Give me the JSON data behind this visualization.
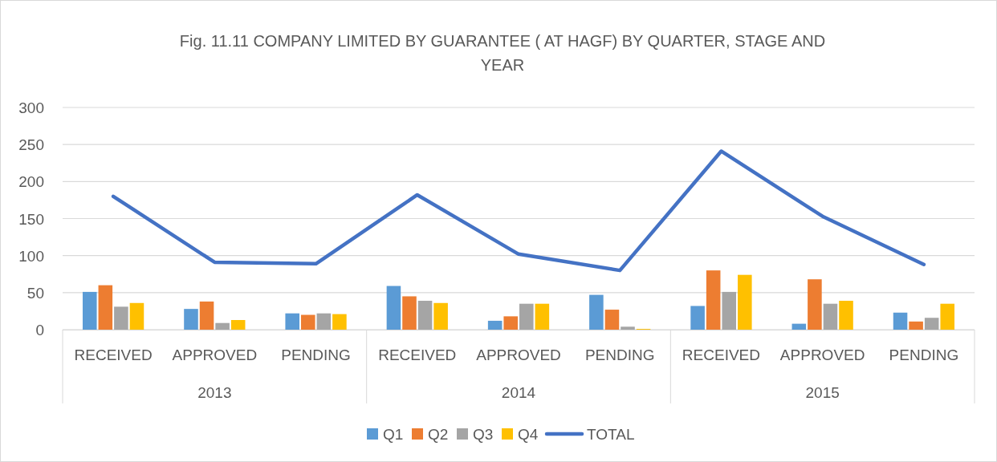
{
  "chart_data": {
    "type": "bar",
    "title": "Fig. 11.11  COMPANY LIMITED BY GUARANTEE ( AT HAGF) BY QUARTER, STAGE AND YEAR",
    "categories": [
      "RECEIVED",
      "APPROVED",
      "PENDING",
      "RECEIVED",
      "APPROVED",
      "PENDING",
      "RECEIVED",
      "APPROVED",
      "PENDING"
    ],
    "annotations": [
      "2013",
      "2014",
      "2015"
    ],
    "series": [
      {
        "name": "Q1",
        "color": "#5b9bd5",
        "values": [
          51,
          28,
          22,
          59,
          12,
          47,
          32,
          8,
          23
        ]
      },
      {
        "name": "Q2",
        "color": "#ed7d31",
        "values": [
          60,
          38,
          20,
          45,
          18,
          27,
          80,
          68,
          11
        ]
      },
      {
        "name": "Q3",
        "color": "#a5a5a5",
        "values": [
          31,
          9,
          22,
          39,
          35,
          4,
          51,
          35,
          16
        ]
      },
      {
        "name": "Q4",
        "color": "#ffc000",
        "values": [
          36,
          13,
          21,
          36,
          35,
          1,
          74,
          39,
          35
        ]
      },
      {
        "name": "TOTAL",
        "type": "line",
        "color": "#4472c4",
        "values": [
          180,
          91,
          89,
          182,
          102,
          80,
          241,
          153,
          88
        ]
      }
    ],
    "ylim": [
      0,
      300
    ],
    "yticks": [
      0,
      50,
      100,
      150,
      200,
      250,
      300
    ],
    "grid": "y",
    "legend": "bottom"
  }
}
